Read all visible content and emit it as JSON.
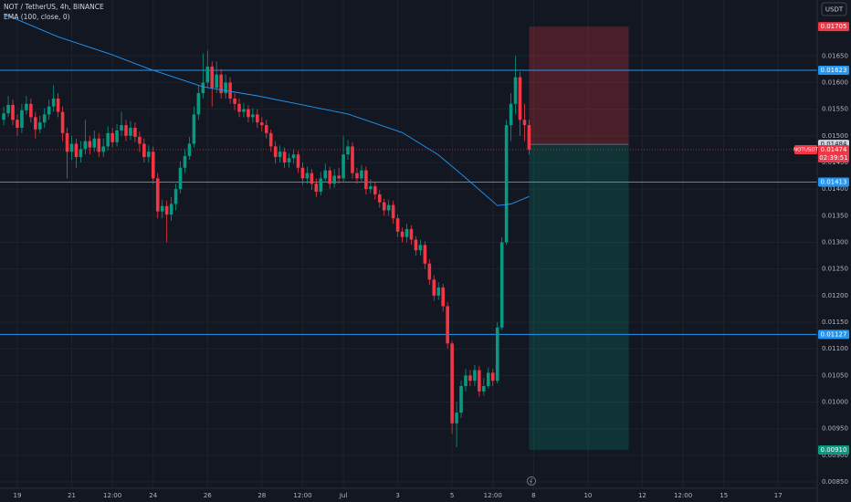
{
  "header": {
    "symbol": "NOT / TetherUS, 4h, BINANCE",
    "currency": "USDT"
  },
  "chart_data": {
    "type": "candlestick",
    "grid": true,
    "up_color": "#089981",
    "down_color": "#f23645",
    "x": [
      -12,
      -8,
      -4,
      0,
      4,
      8,
      12,
      16,
      20,
      24,
      28,
      32,
      36,
      40,
      44,
      48,
      52,
      56,
      60,
      64,
      68,
      72,
      76,
      80,
      84,
      88,
      92,
      96,
      100,
      104,
      108,
      112,
      116,
      120,
      124,
      128,
      132,
      136,
      140,
      144,
      148,
      152,
      156,
      160,
      164,
      168,
      172,
      176,
      180,
      184,
      188,
      192,
      196,
      200,
      204,
      208,
      212,
      216,
      220,
      224,
      228,
      232,
      236,
      240,
      244,
      248,
      252,
      256,
      260,
      264,
      268,
      272,
      276,
      280,
      284,
      288,
      292,
      296,
      300,
      304,
      308,
      312,
      316,
      320,
      324,
      328,
      332,
      336,
      340,
      344,
      348,
      352,
      356,
      360,
      364,
      368,
      372,
      376,
      380,
      384,
      388,
      392,
      396,
      400,
      404,
      408,
      412,
      416,
      420,
      424,
      428,
      432,
      436,
      440,
      444,
      448,
      452
    ],
    "open": [
      0.0153,
      0.01542,
      0.01558,
      0.0153,
      0.01515,
      0.01548,
      0.0156,
      0.01535,
      0.01512,
      0.01525,
      0.0154,
      0.01555,
      0.0157,
      0.01545,
      0.01505,
      0.0147,
      0.01485,
      0.0146,
      0.01475,
      0.0149,
      0.01478,
      0.01495,
      0.0147,
      0.0148,
      0.01505,
      0.01488,
      0.0151,
      0.0152,
      0.015,
      0.01515,
      0.01498,
      0.01485,
      0.0146,
      0.0147,
      0.0142,
      0.01358,
      0.01368,
      0.01352,
      0.01372,
      0.014,
      0.0144,
      0.01462,
      0.01485,
      0.0154,
      0.0158,
      0.016,
      0.0163,
      0.0159,
      0.01615,
      0.0158,
      0.016,
      0.0157,
      0.0156,
      0.01545,
      0.0155,
      0.01535,
      0.0154,
      0.01525,
      0.0152,
      0.01505,
      0.0148,
      0.0146,
      0.0147,
      0.0145,
      0.01458,
      0.01465,
      0.0144,
      0.0142,
      0.0143,
      0.0141,
      0.01395,
      0.0142,
      0.01435,
      0.0141,
      0.01425,
      0.0142,
      0.01465,
      0.0148,
      0.0143,
      0.0142,
      0.01435,
      0.014,
      0.01405,
      0.0139,
      0.01375,
      0.0136,
      0.0137,
      0.01345,
      0.0132,
      0.0131,
      0.01325,
      0.01305,
      0.01285,
      0.01295,
      0.0126,
      0.0123,
      0.012,
      0.01215,
      0.0118,
      0.0111,
      0.0096,
      0.0098,
      0.0103,
      0.0105,
      0.0104,
      0.0106,
      0.0102,
      0.0103,
      0.01055,
      0.0104,
      0.0114,
      0.013,
      0.0152,
      0.0156,
      0.0161,
      0.0153,
      0.0152
    ],
    "high": [
      0.01555,
      0.01575,
      0.01568,
      0.0154,
      0.0156,
      0.01575,
      0.0157,
      0.01545,
      0.01538,
      0.01552,
      0.01568,
      0.01595,
      0.0158,
      0.01555,
      0.01515,
      0.015,
      0.01495,
      0.0149,
      0.0153,
      0.015,
      0.0151,
      0.01505,
      0.01495,
      0.01518,
      0.01515,
      0.01522,
      0.01545,
      0.0153,
      0.01528,
      0.01525,
      0.01508,
      0.01495,
      0.01482,
      0.0148,
      0.0143,
      0.0138,
      0.01378,
      0.01385,
      0.0141,
      0.01452,
      0.01475,
      0.01498,
      0.01555,
      0.01595,
      0.01655,
      0.0166,
      0.0164,
      0.0164,
      0.01625,
      0.01615,
      0.0161,
      0.0158,
      0.0157,
      0.01562,
      0.01558,
      0.01552,
      0.0155,
      0.01535,
      0.0153,
      0.01512,
      0.0149,
      0.01482,
      0.01478,
      0.01468,
      0.01475,
      0.01472,
      0.0145,
      0.01442,
      0.01438,
      0.0142,
      0.01432,
      0.01448,
      0.01442,
      0.01438,
      0.0144,
      0.015,
      0.01492,
      0.01488,
      0.0144,
      0.01445,
      0.01442,
      0.01418,
      0.01412,
      0.01398,
      0.01382,
      0.0138,
      0.01378,
      0.01352,
      0.01328,
      0.01335,
      0.01332,
      0.01312,
      0.01305,
      0.01302,
      0.01268,
      0.01238,
      0.01225,
      0.01222,
      0.01188,
      0.01115,
      0.01,
      0.0104,
      0.01062,
      0.0106,
      0.0107,
      0.01068,
      0.01045,
      0.01065,
      0.01062,
      0.0115,
      0.0131,
      0.0153,
      0.0158,
      0.0165,
      0.0162,
      0.0156,
      0.0153
    ],
    "low": [
      0.0152,
      0.01535,
      0.0152,
      0.015,
      0.01505,
      0.0154,
      0.01525,
      0.01495,
      0.01505,
      0.01515,
      0.0153,
      0.01545,
      0.01535,
      0.0149,
      0.0142,
      0.01455,
      0.0144,
      0.0145,
      0.01465,
      0.01465,
      0.0147,
      0.0146,
      0.0146,
      0.01472,
      0.01478,
      0.0148,
      0.015,
      0.0149,
      0.01492,
      0.01488,
      0.0147,
      0.0145,
      0.0145,
      0.0141,
      0.01345,
      0.01345,
      0.013,
      0.0134,
      0.0136,
      0.01392,
      0.0143,
      0.01455,
      0.01478,
      0.0153,
      0.0157,
      0.0159,
      0.01555,
      0.0158,
      0.0157,
      0.0157,
      0.0156,
      0.01548,
      0.01535,
      0.01535,
      0.01525,
      0.01525,
      0.01515,
      0.01508,
      0.01495,
      0.0147,
      0.01448,
      0.0145,
      0.0144,
      0.0144,
      0.01448,
      0.0143,
      0.01408,
      0.0141,
      0.01398,
      0.01385,
      0.01388,
      0.01412,
      0.014,
      0.01402,
      0.0141,
      0.01412,
      0.01455,
      0.0142,
      0.0141,
      0.01412,
      0.0139,
      0.01392,
      0.0138,
      0.01365,
      0.0135,
      0.0135,
      0.01335,
      0.0131,
      0.013,
      0.013,
      0.01295,
      0.01275,
      0.01275,
      0.0125,
      0.0122,
      0.0119,
      0.01192,
      0.0117,
      0.011,
      0.0094,
      0.00915,
      0.0097,
      0.0102,
      0.0103,
      0.0103,
      0.0101,
      0.01012,
      0.01025,
      0.0103,
      0.01035,
      0.01135,
      0.01295,
      0.0149,
      0.0154,
      0.015,
      0.0149,
      0.01465
    ],
    "close": [
      0.01542,
      0.01558,
      0.0153,
      0.01515,
      0.01548,
      0.0156,
      0.01535,
      0.01512,
      0.01525,
      0.0154,
      0.01555,
      0.0157,
      0.01545,
      0.01505,
      0.0147,
      0.01485,
      0.0146,
      0.01475,
      0.0149,
      0.01478,
      0.01495,
      0.0147,
      0.0148,
      0.01505,
      0.01488,
      0.0151,
      0.0152,
      0.015,
      0.01515,
      0.01498,
      0.01485,
      0.0146,
      0.0147,
      0.0142,
      0.01358,
      0.01368,
      0.01352,
      0.01372,
      0.014,
      0.0144,
      0.01462,
      0.01485,
      0.0154,
      0.0158,
      0.016,
      0.0163,
      0.0159,
      0.01615,
      0.0158,
      0.016,
      0.0157,
      0.0156,
      0.01545,
      0.0155,
      0.01535,
      0.0154,
      0.01525,
      0.0152,
      0.01505,
      0.0148,
      0.0146,
      0.0147,
      0.0145,
      0.01458,
      0.01465,
      0.0144,
      0.0142,
      0.0143,
      0.0141,
      0.01395,
      0.0142,
      0.01435,
      0.0141,
      0.01425,
      0.0142,
      0.01465,
      0.0148,
      0.0143,
      0.0142,
      0.01435,
      0.014,
      0.01405,
      0.0139,
      0.01375,
      0.0136,
      0.0137,
      0.01345,
      0.0132,
      0.0131,
      0.01325,
      0.01305,
      0.01285,
      0.01295,
      0.0126,
      0.0123,
      0.012,
      0.01215,
      0.0118,
      0.0111,
      0.0096,
      0.0098,
      0.0103,
      0.0105,
      0.0104,
      0.0106,
      0.0102,
      0.0103,
      0.01055,
      0.0104,
      0.0114,
      0.013,
      0.0152,
      0.0156,
      0.0161,
      0.0153,
      0.0152,
      0.01474
    ],
    "ema": {
      "name": "EMA (100, close, 0)",
      "color": "#2196f3",
      "x": [
        -12,
        36,
        84,
        116,
        164,
        212,
        252,
        292,
        340,
        372,
        396,
        424,
        436,
        452
      ],
      "values": [
        0.01729,
        0.01686,
        0.01652,
        0.01626,
        0.01592,
        0.01575,
        0.01558,
        0.01541,
        0.01506,
        0.01464,
        0.01421,
        0.01369,
        0.01372,
        0.01386
      ]
    },
    "levels": [
      {
        "value": 0.01623,
        "color": "#2196f3"
      },
      {
        "value": 0.01413,
        "color": "#2196f3"
      },
      {
        "value": 0.01127,
        "color": "#2196f3"
      }
    ],
    "position": {
      "x": [
        452,
        540
      ],
      "stop": 0.01705,
      "entry": 0.01484,
      "target": {
        "value": 0.0091,
        "label": "0.00910"
      },
      "stop_color": "#f23645",
      "target_color": "#089981"
    },
    "last_price": {
      "symbol": "NOTUSDT",
      "value": 0.01474,
      "countdown": "02:39:51",
      "color": "#f23645"
    },
    "xlim": [
      -15.3,
      706.5
    ],
    "ylim": [
      0.00838,
      0.01755
    ],
    "xticks": [
      {
        "value": 0,
        "label": "19"
      },
      {
        "value": 48,
        "label": "21"
      },
      {
        "value": 84,
        "label": "12:00"
      },
      {
        "value": 120,
        "label": "24"
      },
      {
        "value": 168,
        "label": "26"
      },
      {
        "value": 216,
        "label": "28"
      },
      {
        "value": 252,
        "label": "12:00"
      },
      {
        "value": 288,
        "label": "Jul"
      },
      {
        "value": 336,
        "label": "3"
      },
      {
        "value": 384,
        "label": "5"
      },
      {
        "value": 420,
        "label": "12:00"
      },
      {
        "value": 456,
        "label": "8"
      },
      {
        "value": 504,
        "label": "10"
      },
      {
        "value": 552,
        "label": "12"
      },
      {
        "value": 588,
        "label": "12:00"
      },
      {
        "value": 624,
        "label": "15"
      },
      {
        "value": 672,
        "label": "17"
      }
    ],
    "yticks": [
      {
        "value": 0.0085,
        "label": "0.00850"
      },
      {
        "value": 0.009,
        "label": "0.00900"
      },
      {
        "value": 0.0095,
        "label": "0.00950"
      },
      {
        "value": 0.01,
        "label": "0.01000"
      },
      {
        "value": 0.0105,
        "label": "0.01050"
      },
      {
        "value": 0.011,
        "label": "0.01100"
      },
      {
        "value": 0.0115,
        "label": "0.01150"
      },
      {
        "value": 0.012,
        "label": "0.01200"
      },
      {
        "value": 0.0125,
        "label": "0.01250"
      },
      {
        "value": 0.013,
        "label": "0.01300"
      },
      {
        "value": 0.0135,
        "label": "0.01350"
      },
      {
        "value": 0.014,
        "label": "0.01400"
      },
      {
        "value": 0.0145,
        "label": "0.01450"
      },
      {
        "value": 0.015,
        "label": "0.01500"
      },
      {
        "value": 0.0155,
        "label": "0.01550"
      },
      {
        "value": 0.016,
        "label": "0.01600"
      },
      {
        "value": 0.0165,
        "label": "0.01650"
      }
    ]
  }
}
